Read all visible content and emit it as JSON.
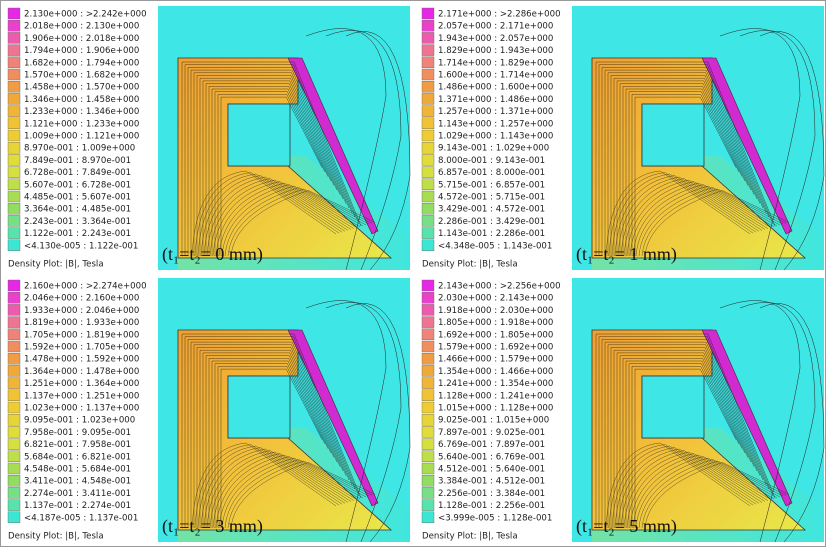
{
  "panels": [
    {
      "legend": [
        "2.130e+000 : >2.242e+000",
        "2.018e+000 : 2.130e+000",
        "1.906e+000 : 2.018e+000",
        "1.794e+000 : 1.906e+000",
        "1.682e+000 : 1.794e+000",
        "1.570e+000 : 1.682e+000",
        "1.458e+000 : 1.570e+000",
        "1.346e+000 : 1.458e+000",
        "1.233e+000 : 1.346e+000",
        "1.121e+000 : 1.233e+000",
        "1.009e+000 : 1.121e+000",
        "8.970e-001 : 1.009e+000",
        "7.849e-001 : 8.970e-001",
        "6.728e-001 : 7.849e-001",
        "5.607e-001 : 6.728e-001",
        "4.485e-001 : 5.607e-001",
        "3.364e-001 : 4.485e-001",
        "2.243e-001 : 3.364e-001",
        "1.122e-001 : 2.243e-001",
        "<4.130e-005 : 1.122e-001"
      ],
      "legend_title": "Density Plot: |B|, Tesla",
      "caption": "(t₁=t₂= 0 mm)"
    },
    {
      "legend": [
        "2.171e+000 : >2.286e+000",
        "2.057e+000 : 2.171e+000",
        "1.943e+000 : 2.057e+000",
        "1.829e+000 : 1.943e+000",
        "1.714e+000 : 1.829e+000",
        "1.600e+000 : 1.714e+000",
        "1.486e+000 : 1.600e+000",
        "1.371e+000 : 1.486e+000",
        "1.257e+000 : 1.371e+000",
        "1.143e+000 : 1.257e+000",
        "1.029e+000 : 1.143e+000",
        "9.143e-001 : 1.029e+000",
        "8.000e-001 : 9.143e-001",
        "6.857e-001 : 8.000e-001",
        "5.715e-001 : 6.857e-001",
        "4.572e-001 : 5.715e-001",
        "3.429e-001 : 4.572e-001",
        "2.286e-001 : 3.429e-001",
        "1.143e-001 : 2.286e-001",
        "<4.348e-005 : 1.143e-001"
      ],
      "legend_title": "Density Plot: |B|, Tesla",
      "caption": "(t₁=t₂= 1 mm)"
    },
    {
      "legend": [
        "2.160e+000 : >2.274e+000",
        "2.046e+000 : 2.160e+000",
        "1.933e+000 : 2.046e+000",
        "1.819e+000 : 1.933e+000",
        "1.705e+000 : 1.819e+000",
        "1.592e+000 : 1.705e+000",
        "1.478e+000 : 1.592e+000",
        "1.364e+000 : 1.478e+000",
        "1.251e+000 : 1.364e+000",
        "1.137e+000 : 1.251e+000",
        "1.023e+000 : 1.137e+000",
        "9.095e-001 : 1.023e+000",
        "7.958e-001 : 9.095e-001",
        "6.821e-001 : 7.958e-001",
        "5.684e-001 : 6.821e-001",
        "4.548e-001 : 5.684e-001",
        "3.411e-001 : 4.548e-001",
        "2.274e-001 : 3.411e-001",
        "1.137e-001 : 2.274e-001",
        "<4.187e-005 : 1.137e-001"
      ],
      "legend_title": "Density Plot: |B|, Tesla",
      "caption": "(t₁=t₂= 3 mm)"
    },
    {
      "legend": [
        "2.143e+000 : >2.256e+000",
        "2.030e+000 : 2.143e+000",
        "1.918e+000 : 2.030e+000",
        "1.805e+000 : 1.918e+000",
        "1.692e+000 : 1.805e+000",
        "1.579e+000 : 1.692e+000",
        "1.466e+000 : 1.579e+000",
        "1.354e+000 : 1.466e+000",
        "1.241e+000 : 1.354e+000",
        "1.128e+000 : 1.241e+000",
        "1.015e+000 : 1.128e+000",
        "9.025e-001 : 1.015e+000",
        "7.897e-001 : 9.025e-001",
        "6.769e-001 : 7.897e-001",
        "5.640e-001 : 6.769e-001",
        "4.512e-001 : 5.640e-001",
        "3.384e-001 : 4.512e-001",
        "2.256e-001 : 3.384e-001",
        "1.128e-001 : 2.256e-001",
        "<3.999e-005 : 1.128e-001"
      ],
      "legend_title": "Density Plot: |B|, Tesla",
      "caption": "(t₁=t₂= 5 mm)"
    }
  ]
}
